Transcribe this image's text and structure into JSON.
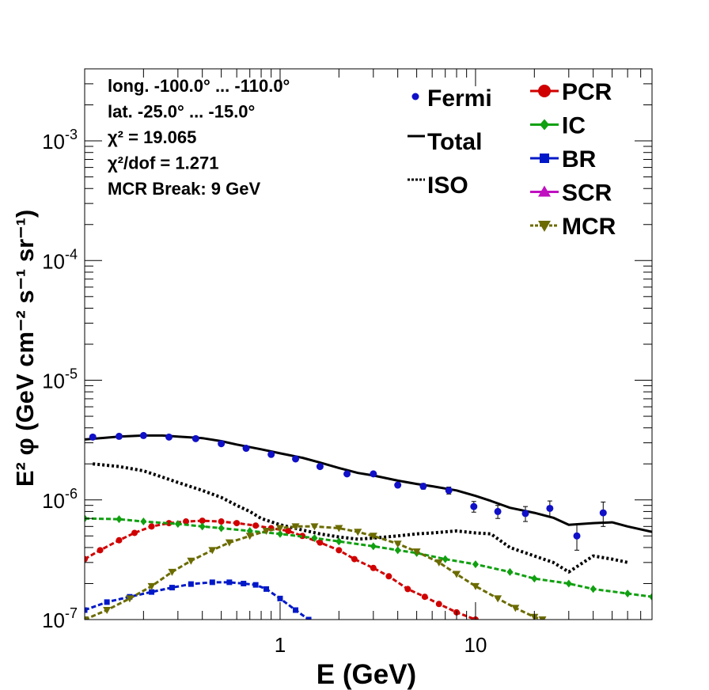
{
  "chart_data": {
    "type": "line",
    "title": "",
    "xlabel": "E (GeV)",
    "ylabel": "E² φ (GeV cm⁻² s⁻¹ sr⁻¹)",
    "x_scale": "log",
    "y_scale": "log",
    "xlim": [
      0.1,
      80
    ],
    "ylim": [
      1e-07,
      0.004
    ],
    "x_ticks": [
      {
        "value": 1,
        "label": "1"
      },
      {
        "value": 10,
        "label": "10"
      }
    ],
    "y_ticks": [
      {
        "value": 1e-07,
        "base": "10",
        "exp": "-7"
      },
      {
        "value": 1e-06,
        "base": "10",
        "exp": "-6"
      },
      {
        "value": 1e-05,
        "base": "10",
        "exp": "-5"
      },
      {
        "value": 0.0001,
        "base": "10",
        "exp": "-4"
      },
      {
        "value": 0.001,
        "base": "10",
        "exp": "-3"
      }
    ],
    "info_lines": [
      "long. -100.0° ... -110.0°",
      "lat. -25.0° ... -15.0°",
      "χ² = 19.065",
      "χ²/dof = 1.271",
      "MCR Break:  9 GeV"
    ],
    "legend_left": [
      {
        "label": "Fermi",
        "style": "point",
        "color": "#1010c8"
      },
      {
        "label": "Total",
        "style": "solid",
        "color": "#000000"
      },
      {
        "label": "ISO",
        "style": "dotted",
        "color": "#000000"
      }
    ],
    "legend_right": [
      {
        "label": "PCR",
        "style": "circle",
        "color": "#d00000"
      },
      {
        "label": "IC",
        "style": "diamond",
        "color": "#10a010"
      },
      {
        "label": "BR",
        "style": "square",
        "color": "#0018c8"
      },
      {
        "label": "SCR",
        "style": "triangle-up",
        "color": "#c010c0"
      },
      {
        "label": "MCR",
        "style": "triangle-down",
        "color": "#6b6b00"
      }
    ],
    "fermi": [
      {
        "x": 0.11,
        "y": 3.35e-06,
        "err": 8e-08
      },
      {
        "x": 0.15,
        "y": 3.4e-06,
        "err": 8e-08
      },
      {
        "x": 0.2,
        "y": 3.45e-06,
        "err": 8e-08
      },
      {
        "x": 0.27,
        "y": 3.35e-06,
        "err": 8e-08
      },
      {
        "x": 0.37,
        "y": 3.25e-06,
        "err": 8e-08
      },
      {
        "x": 0.5,
        "y": 2.95e-06,
        "err": 7e-08
      },
      {
        "x": 0.67,
        "y": 2.7e-06,
        "err": 7e-08
      },
      {
        "x": 0.9,
        "y": 2.4e-06,
        "err": 6e-08
      },
      {
        "x": 1.2,
        "y": 2.2e-06,
        "err": 6e-08
      },
      {
        "x": 1.6,
        "y": 1.9e-06,
        "err": 6e-08
      },
      {
        "x": 2.2,
        "y": 1.65e-06,
        "err": 5e-08
      },
      {
        "x": 3.0,
        "y": 1.65e-06,
        "err": 6e-08
      },
      {
        "x": 4.0,
        "y": 1.33e-06,
        "err": 5e-08
      },
      {
        "x": 5.4,
        "y": 1.3e-06,
        "err": 7e-08
      },
      {
        "x": 7.3,
        "y": 1.2e-06,
        "err": 8e-08
      },
      {
        "x": 9.8,
        "y": 8.8e-07,
        "err": 9e-08
      },
      {
        "x": 13,
        "y": 8e-07,
        "err": 1e-07
      },
      {
        "x": 18,
        "y": 7.7e-07,
        "err": 1.1e-07
      },
      {
        "x": 24,
        "y": 8.5e-07,
        "err": 1.3e-07
      },
      {
        "x": 33,
        "y": 5e-07,
        "err": 1.2e-07
      },
      {
        "x": 45,
        "y": 7.8e-07,
        "err": 1.8e-07
      }
    ],
    "series": [
      {
        "name": "Total",
        "color": "#000000",
        "marker": "none",
        "dash": "solid",
        "width": 3,
        "x": [
          0.1,
          0.15,
          0.2,
          0.25,
          0.3,
          0.4,
          0.5,
          0.6,
          0.8,
          1.0,
          1.3,
          1.6,
          2.0,
          2.5,
          3.0,
          4.0,
          5.0,
          6.0,
          8.0,
          10,
          12,
          15,
          20,
          25,
          30,
          40,
          50,
          60,
          80
        ],
        "y": [
          3.2e-06,
          3.38e-06,
          3.45e-06,
          3.45e-06,
          3.38e-06,
          3.28e-06,
          3.1e-06,
          2.9e-06,
          2.65e-06,
          2.45e-06,
          2.25e-06,
          2.05e-06,
          1.85e-06,
          1.68e-06,
          1.6e-06,
          1.45e-06,
          1.36e-06,
          1.3e-06,
          1.2e-06,
          1.08e-06,
          9.8e-07,
          8.6e-07,
          7.8e-07,
          7.1e-07,
          6.2e-07,
          6.4e-07,
          6.5e-07,
          6e-07,
          5.4e-07
        ]
      },
      {
        "name": "ISO",
        "color": "#000000",
        "marker": "none",
        "dash": "dotted",
        "width": 4,
        "x": [
          0.11,
          0.15,
          0.2,
          0.25,
          0.3,
          0.4,
          0.5,
          0.6,
          0.7,
          0.8,
          1.0,
          1.3,
          1.6,
          2.0,
          2.5,
          3.0,
          4.0,
          5.0,
          6.0,
          8.0,
          10,
          12,
          15,
          20,
          25,
          30,
          40,
          50,
          60
        ],
        "y": [
          2e-06,
          1.9e-06,
          1.75e-06,
          1.55e-06,
          1.4e-06,
          1.2e-06,
          1.05e-06,
          9e-07,
          8e-07,
          7e-07,
          6.2e-07,
          5.6e-07,
          5.2e-07,
          4.9e-07,
          4.7e-07,
          4.8e-07,
          5e-07,
          5.2e-07,
          5.3e-07,
          5.5e-07,
          5.3e-07,
          5.2e-07,
          4e-07,
          3.4e-07,
          3e-07,
          2.5e-07,
          3.4e-07,
          3.2e-07,
          3e-07
        ]
      },
      {
        "name": "PCR",
        "color": "#d00000",
        "marker": "circle",
        "dash": "dashed",
        "width": 3,
        "x": [
          0.1,
          0.12,
          0.15,
          0.18,
          0.22,
          0.27,
          0.33,
          0.4,
          0.5,
          0.6,
          0.75,
          0.9,
          1.1,
          1.3,
          1.6,
          2.0,
          2.4,
          3.0,
          3.6,
          4.5,
          5.5,
          6.5,
          8.0,
          10,
          12
        ],
        "y": [
          3.2e-07,
          3.8e-07,
          4.6e-07,
          5.3e-07,
          6e-07,
          6.4e-07,
          6.6e-07,
          6.7e-07,
          6.6e-07,
          6.4e-07,
          6.1e-07,
          5.8e-07,
          5.5e-07,
          5e-07,
          4.4e-07,
          3.8e-07,
          3.2e-07,
          2.7e-07,
          2.3e-07,
          1.8e-07,
          1.55e-07,
          1.35e-07,
          1.15e-07,
          1e-07,
          9e-08
        ]
      },
      {
        "name": "IC",
        "color": "#10a010",
        "marker": "diamond",
        "dash": "dashed",
        "width": 3,
        "x": [
          0.1,
          0.15,
          0.2,
          0.3,
          0.4,
          0.5,
          0.7,
          1.0,
          1.5,
          2.0,
          3.0,
          4.0,
          5.0,
          7.0,
          10,
          15,
          20,
          30,
          40,
          60,
          80
        ],
        "y": [
          7e-07,
          6.9e-07,
          6.6e-07,
          6.3e-07,
          6e-07,
          5.8e-07,
          5.5e-07,
          5.2e-07,
          4.8e-07,
          4.5e-07,
          4.1e-07,
          3.8e-07,
          3.6e-07,
          3.2e-07,
          2.9e-07,
          2.5e-07,
          2.2e-07,
          2e-07,
          1.8e-07,
          1.65e-07,
          1.55e-07
        ]
      },
      {
        "name": "BR",
        "color": "#0018c8",
        "marker": "square",
        "dash": "dashed",
        "width": 3,
        "x": [
          0.1,
          0.13,
          0.17,
          0.22,
          0.28,
          0.35,
          0.45,
          0.55,
          0.65,
          0.75,
          0.85,
          1.0,
          1.2,
          1.4
        ],
        "y": [
          1.2e-07,
          1.4e-07,
          1.55e-07,
          1.7e-07,
          1.85e-07,
          1.98e-07,
          2.05e-07,
          2.05e-07,
          2e-07,
          1.95e-07,
          1.8e-07,
          1.5e-07,
          1.2e-07,
          1e-07
        ]
      },
      {
        "name": "MCR",
        "color": "#6b6b00",
        "marker": "triangle-down",
        "dash": "dashed",
        "width": 3,
        "x": [
          0.1,
          0.13,
          0.17,
          0.22,
          0.28,
          0.35,
          0.45,
          0.55,
          0.7,
          0.85,
          1.0,
          1.2,
          1.5,
          2.0,
          2.5,
          3.0,
          4.0,
          5.0,
          6.5,
          8.0,
          10,
          13,
          16,
          20,
          22
        ],
        "y": [
          1e-07,
          1.2e-07,
          1.5e-07,
          1.9e-07,
          2.5e-07,
          3.1e-07,
          3.8e-07,
          4.4e-07,
          5e-07,
          5.5e-07,
          5.8e-07,
          6e-07,
          6e-07,
          5.8e-07,
          5.4e-07,
          5e-07,
          4.3e-07,
          3.7e-07,
          3e-07,
          2.4e-07,
          1.9e-07,
          1.5e-07,
          1.25e-07,
          1.05e-07,
          1e-07
        ]
      }
    ]
  }
}
